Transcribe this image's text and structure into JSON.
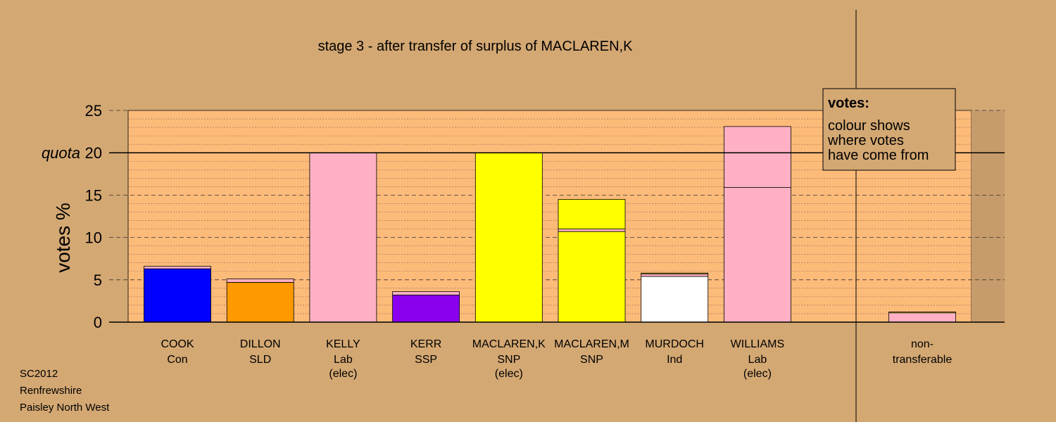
{
  "chart_data": {
    "type": "bar",
    "title": "stage 3 - after transfer of surplus of MACLAREN,K",
    "ylabel": "votes %",
    "ylim": [
      0,
      25
    ],
    "yticks": [
      0,
      5,
      10,
      15,
      20,
      25
    ],
    "quota": {
      "label": "quota",
      "value": 20
    },
    "grid": true,
    "candidates": [
      {
        "name": "COOK",
        "party": "Con",
        "status": "",
        "stack": [
          {
            "value": 6.3,
            "color": "#0000ff"
          },
          {
            "value": 0.3,
            "color": "#ffb0c4"
          }
        ]
      },
      {
        "name": "DILLON",
        "party": "SLD",
        "status": "",
        "stack": [
          {
            "value": 4.7,
            "color": "#ff9900"
          },
          {
            "value": 0.4,
            "color": "#ffb0c4"
          }
        ]
      },
      {
        "name": "KELLY",
        "party": "Lab",
        "status": "(elec)",
        "stack": [
          {
            "value": 20.0,
            "color": "#ffb0c4"
          }
        ]
      },
      {
        "name": "KERR",
        "party": "SSP",
        "status": "",
        "stack": [
          {
            "value": 3.2,
            "color": "#8800ee"
          },
          {
            "value": 0.4,
            "color": "#ffb0c4"
          }
        ]
      },
      {
        "name": "MACLAREN,K",
        "party": "SNP",
        "status": "(elec)",
        "stack": [
          {
            "value": 20.0,
            "color": "#ffff00"
          }
        ]
      },
      {
        "name": "MACLAREN,M",
        "party": "SNP",
        "status": "",
        "stack": [
          {
            "value": 10.7,
            "color": "#ffff00"
          },
          {
            "value": 0.3,
            "color": "#ffb0c4"
          },
          {
            "value": 3.5,
            "color": "#ffff00"
          }
        ]
      },
      {
        "name": "MURDOCH",
        "party": "Ind",
        "status": "",
        "stack": [
          {
            "value": 5.4,
            "color": "#ffffff"
          },
          {
            "value": 0.3,
            "color": "#ffb0c4"
          },
          {
            "value": 0.1,
            "color": "#ffff00"
          }
        ]
      },
      {
        "name": "WILLIAMS",
        "party": "Lab",
        "status": "(elec)",
        "stack": [
          {
            "value": 15.9,
            "color": "#ffb0c4"
          },
          {
            "value": 7.2,
            "color": "#ffb0c4"
          }
        ]
      }
    ],
    "nontransferable": {
      "label_line1": "non-",
      "label_line2": "transferable",
      "stack": [
        {
          "value": 1.1,
          "color": "#ffb0c4"
        },
        {
          "value": 0.1,
          "color": "#ffff00"
        }
      ]
    },
    "legend": {
      "title": "votes:",
      "lines": [
        "colour shows",
        "where votes",
        "have come from"
      ],
      "placement": "top-right"
    },
    "colors": {
      "background": "#d4a873",
      "plot_area": "#fdbb7a",
      "right_shade": "#c79c6c"
    }
  },
  "footer": [
    "SC2012",
    "Renfrewshire",
    "Paisley North West"
  ]
}
